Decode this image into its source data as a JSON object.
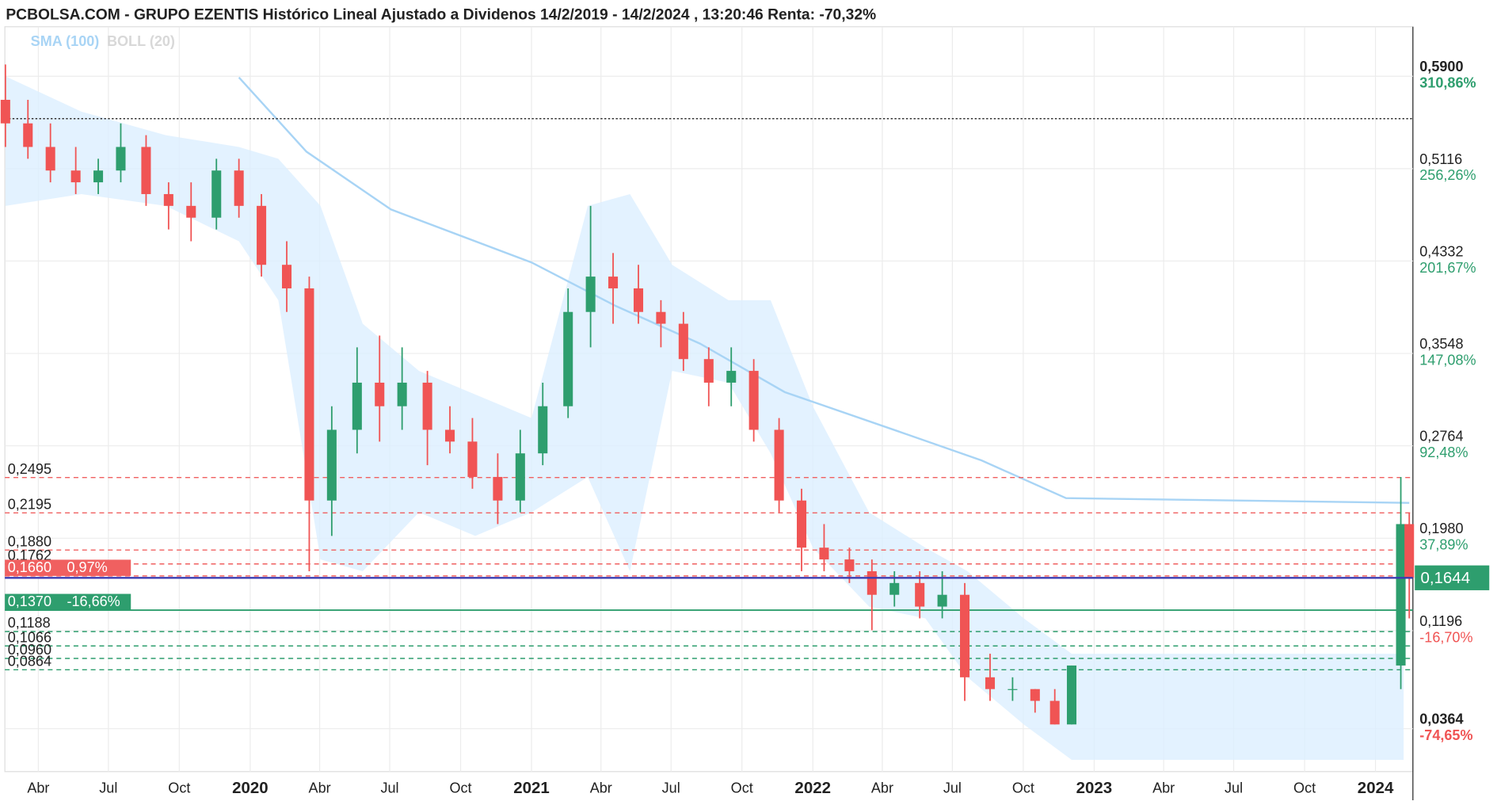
{
  "chart_data": {
    "type": "candlestick",
    "title": "PCBOLSA.COM - GRUPO EZENTIS Histórico Lineal Ajustado a Dividenos 14/2/2019 - 14/2/2024 , 13:20:46 Renta: -70,32%",
    "xlim": [
      2019.128,
      2024.133
    ],
    "ylim": [
      0,
      0.632
    ],
    "grid": true,
    "up_color": "#2e9e6e",
    "down_color": "#f05454",
    "xticks": [
      {
        "value": 2019.247,
        "label": "Abr"
      },
      {
        "value": 2019.496,
        "label": "Jul"
      },
      {
        "value": 2019.748,
        "label": "Oct"
      },
      2020,
      {
        "value": 2020.247,
        "label": "Abr"
      },
      {
        "value": 2020.496,
        "label": "Jul"
      },
      {
        "value": 2020.748,
        "label": "Oct"
      },
      2021,
      {
        "value": 2021.247,
        "label": "Abr"
      },
      {
        "value": 2021.496,
        "label": "Jul"
      },
      {
        "value": 2021.748,
        "label": "Oct"
      },
      2022,
      {
        "value": 2022.247,
        "label": "Abr"
      },
      {
        "value": 2022.496,
        "label": "Jul"
      },
      {
        "value": 2022.748,
        "label": "Oct"
      },
      2023,
      {
        "value": 2023.247,
        "label": "Abr"
      },
      {
        "value": 2023.496,
        "label": "Jul"
      },
      {
        "value": 2023.748,
        "label": "Oct"
      },
      2024
    ],
    "yticks": [
      {
        "value": 0.59,
        "label": "0,5900",
        "pct": "310,86%",
        "color": "#2e9e6e",
        "bold": true
      },
      {
        "value": 0.5116,
        "label": "0,5116",
        "pct": "256,26%",
        "color": "#2e9e6e"
      },
      {
        "value": 0.4332,
        "label": "0,4332",
        "pct": "201,67%",
        "color": "#2e9e6e"
      },
      {
        "value": 0.3548,
        "label": "0,3548",
        "pct": "147,08%",
        "color": "#2e9e6e"
      },
      {
        "value": 0.2764,
        "label": "0,2764",
        "pct": "92,48%",
        "color": "#2e9e6e"
      },
      {
        "value": 0.198,
        "label": "0,1980",
        "pct": "37,89%",
        "color": "#2e9e6e"
      },
      {
        "value": 0.1196,
        "label": "0,1196",
        "pct": "-16,70%",
        "color": "#f05454"
      },
      {
        "value": 0.0364,
        "label": "0,0364",
        "pct": "-74,65%",
        "color": "#f05454",
        "bold": true
      }
    ],
    "current": {
      "value": 0.1644,
      "label": "0,1644",
      "color": "#2e9e6e",
      "line_color": "#3b3bb0"
    },
    "ref_line": {
      "value": 0.554,
      "color": "#333"
    },
    "levels": [
      {
        "value": 0.2495,
        "label": "0,2495",
        "color": "#f06060"
      },
      {
        "value": 0.2195,
        "label": "0,2195",
        "color": "#f06060"
      },
      {
        "value": 0.188,
        "label": "0,1880",
        "color": "#f06060"
      },
      {
        "value": 0.1762,
        "label": "0,1762",
        "color": "#f06060"
      },
      {
        "value": 0.166,
        "label": "0,1660",
        "tag": "0,97%",
        "color": "#f06060",
        "boxed": true
      },
      {
        "value": 0.137,
        "label": "0,1370",
        "tag": "-16,66%",
        "color": "#2e9e6e",
        "boxed": true,
        "solid": true
      },
      {
        "value": 0.1188,
        "label": "0,1188",
        "color": "#2e9e6e"
      },
      {
        "value": 0.1066,
        "label": "0,1066",
        "color": "#2e9e6e"
      },
      {
        "value": 0.096,
        "label": "0,0960",
        "color": "#2e9e6e"
      },
      {
        "value": 0.0864,
        "label": "0,0864",
        "color": "#2e9e6e"
      }
    ],
    "legend": [
      {
        "name": "SMA (100)",
        "color": "#a8d4f5"
      },
      {
        "name": "BOLL (20)",
        "color": "#d8d8d8"
      }
    ],
    "sma": {
      "x": [
        2019.96,
        2020.2,
        2020.5,
        2021.0,
        2021.3,
        2021.6,
        2021.9,
        2022.3,
        2022.6,
        2022.9,
        2024.12
      ],
      "values": [
        0.589,
        0.526,
        0.477,
        0.432,
        0.395,
        0.363,
        0.322,
        0.289,
        0.264,
        0.232,
        0.228
      ],
      "color": "#a8d4f5"
    },
    "boll": {
      "x": [
        2019.13,
        2019.4,
        2019.7,
        2019.96,
        2020.1,
        2020.25,
        2020.4,
        2020.6,
        2020.8,
        2021.0,
        2021.2,
        2021.35,
        2021.5,
        2021.7,
        2021.85,
        2022.0,
        2022.2,
        2022.4,
        2022.55,
        2022.75,
        2022.92,
        2024.1
      ],
      "upper": [
        0.59,
        0.56,
        0.54,
        0.53,
        0.52,
        0.48,
        0.38,
        0.34,
        0.32,
        0.3,
        0.48,
        0.49,
        0.43,
        0.4,
        0.4,
        0.31,
        0.22,
        0.19,
        0.17,
        0.13,
        0.1,
        0.1
      ],
      "lower": [
        0.48,
        0.49,
        0.48,
        0.45,
        0.4,
        0.18,
        0.17,
        0.22,
        0.2,
        0.22,
        0.25,
        0.17,
        0.34,
        0.33,
        0.27,
        0.19,
        0.14,
        0.13,
        0.08,
        0.04,
        0.01,
        0.01
      ],
      "color": "#dcefff"
    },
    "candles": [
      {
        "t": 2019.13,
        "o": 0.57,
        "h": 0.6,
        "l": 0.53,
        "c": 0.55
      },
      {
        "t": 2019.21,
        "o": 0.55,
        "h": 0.57,
        "l": 0.52,
        "c": 0.53
      },
      {
        "t": 2019.29,
        "o": 0.53,
        "h": 0.55,
        "l": 0.5,
        "c": 0.51
      },
      {
        "t": 2019.38,
        "o": 0.51,
        "h": 0.53,
        "l": 0.49,
        "c": 0.5
      },
      {
        "t": 2019.46,
        "o": 0.5,
        "h": 0.52,
        "l": 0.49,
        "c": 0.51
      },
      {
        "t": 2019.54,
        "o": 0.51,
        "h": 0.55,
        "l": 0.5,
        "c": 0.53
      },
      {
        "t": 2019.63,
        "o": 0.53,
        "h": 0.54,
        "l": 0.48,
        "c": 0.49
      },
      {
        "t": 2019.71,
        "o": 0.49,
        "h": 0.5,
        "l": 0.46,
        "c": 0.48
      },
      {
        "t": 2019.79,
        "o": 0.48,
        "h": 0.5,
        "l": 0.45,
        "c": 0.47
      },
      {
        "t": 2019.88,
        "o": 0.47,
        "h": 0.52,
        "l": 0.46,
        "c": 0.51
      },
      {
        "t": 2019.96,
        "o": 0.51,
        "h": 0.52,
        "l": 0.47,
        "c": 0.48
      },
      {
        "t": 2020.04,
        "o": 0.48,
        "h": 0.49,
        "l": 0.42,
        "c": 0.43
      },
      {
        "t": 2020.13,
        "o": 0.43,
        "h": 0.45,
        "l": 0.39,
        "c": 0.41
      },
      {
        "t": 2020.21,
        "o": 0.41,
        "h": 0.42,
        "l": 0.17,
        "c": 0.23
      },
      {
        "t": 2020.29,
        "o": 0.23,
        "h": 0.31,
        "l": 0.2,
        "c": 0.29
      },
      {
        "t": 2020.38,
        "o": 0.29,
        "h": 0.36,
        "l": 0.27,
        "c": 0.33
      },
      {
        "t": 2020.46,
        "o": 0.33,
        "h": 0.37,
        "l": 0.28,
        "c": 0.31
      },
      {
        "t": 2020.54,
        "o": 0.31,
        "h": 0.36,
        "l": 0.29,
        "c": 0.33
      },
      {
        "t": 2020.63,
        "o": 0.33,
        "h": 0.34,
        "l": 0.26,
        "c": 0.29
      },
      {
        "t": 2020.71,
        "o": 0.29,
        "h": 0.31,
        "l": 0.27,
        "c": 0.28
      },
      {
        "t": 2020.79,
        "o": 0.28,
        "h": 0.3,
        "l": 0.24,
        "c": 0.25
      },
      {
        "t": 2020.88,
        "o": 0.25,
        "h": 0.27,
        "l": 0.21,
        "c": 0.23
      },
      {
        "t": 2020.96,
        "o": 0.23,
        "h": 0.29,
        "l": 0.22,
        "c": 0.27
      },
      {
        "t": 2021.04,
        "o": 0.27,
        "h": 0.33,
        "l": 0.26,
        "c": 0.31
      },
      {
        "t": 2021.13,
        "o": 0.31,
        "h": 0.41,
        "l": 0.3,
        "c": 0.39
      },
      {
        "t": 2021.21,
        "o": 0.39,
        "h": 0.48,
        "l": 0.36,
        "c": 0.42
      },
      {
        "t": 2021.29,
        "o": 0.42,
        "h": 0.44,
        "l": 0.38,
        "c": 0.41
      },
      {
        "t": 2021.38,
        "o": 0.41,
        "h": 0.43,
        "l": 0.38,
        "c": 0.39
      },
      {
        "t": 2021.46,
        "o": 0.39,
        "h": 0.4,
        "l": 0.36,
        "c": 0.38
      },
      {
        "t": 2021.54,
        "o": 0.38,
        "h": 0.39,
        "l": 0.34,
        "c": 0.35
      },
      {
        "t": 2021.63,
        "o": 0.35,
        "h": 0.36,
        "l": 0.31,
        "c": 0.33
      },
      {
        "t": 2021.71,
        "o": 0.33,
        "h": 0.36,
        "l": 0.31,
        "c": 0.34
      },
      {
        "t": 2021.79,
        "o": 0.34,
        "h": 0.35,
        "l": 0.28,
        "c": 0.29
      },
      {
        "t": 2021.88,
        "o": 0.29,
        "h": 0.3,
        "l": 0.22,
        "c": 0.23
      },
      {
        "t": 2021.96,
        "o": 0.23,
        "h": 0.24,
        "l": 0.17,
        "c": 0.19
      },
      {
        "t": 2022.04,
        "o": 0.19,
        "h": 0.21,
        "l": 0.17,
        "c": 0.18
      },
      {
        "t": 2022.13,
        "o": 0.18,
        "h": 0.19,
        "l": 0.16,
        "c": 0.17
      },
      {
        "t": 2022.21,
        "o": 0.17,
        "h": 0.18,
        "l": 0.12,
        "c": 0.15
      },
      {
        "t": 2022.29,
        "o": 0.15,
        "h": 0.17,
        "l": 0.14,
        "c": 0.16
      },
      {
        "t": 2022.38,
        "o": 0.16,
        "h": 0.17,
        "l": 0.13,
        "c": 0.14
      },
      {
        "t": 2022.46,
        "o": 0.14,
        "h": 0.17,
        "l": 0.13,
        "c": 0.15
      },
      {
        "t": 2022.54,
        "o": 0.15,
        "h": 0.16,
        "l": 0.06,
        "c": 0.08
      },
      {
        "t": 2022.63,
        "o": 0.08,
        "h": 0.1,
        "l": 0.06,
        "c": 0.07
      },
      {
        "t": 2022.71,
        "o": 0.07,
        "h": 0.08,
        "l": 0.06,
        "c": 0.07
      },
      {
        "t": 2022.79,
        "o": 0.07,
        "h": 0.07,
        "l": 0.05,
        "c": 0.06
      },
      {
        "t": 2022.86,
        "o": 0.06,
        "h": 0.07,
        "l": 0.04,
        "c": 0.04
      },
      {
        "t": 2022.92,
        "o": 0.04,
        "h": 0.09,
        "l": 0.04,
        "c": 0.09
      },
      {
        "t": 2024.09,
        "o": 0.09,
        "h": 0.25,
        "l": 0.07,
        "c": 0.21
      },
      {
        "t": 2024.12,
        "o": 0.21,
        "h": 0.22,
        "l": 0.13,
        "c": 0.1644
      }
    ]
  }
}
